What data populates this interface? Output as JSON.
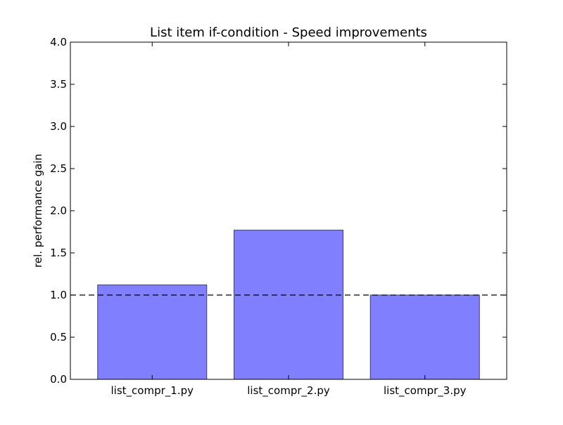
{
  "chart_data": {
    "type": "bar",
    "title": "List item if-condition - Speed improvements",
    "xlabel": "",
    "ylabel": "rel. performance gain",
    "categories": [
      "list_compr_1.py",
      "list_compr_2.py",
      "list_compr_3.py"
    ],
    "values": [
      1.12,
      1.77,
      1.0
    ],
    "ylim": [
      0,
      4.0
    ],
    "yticks": [
      "0.0",
      "0.5",
      "1.0",
      "1.5",
      "2.0",
      "2.5",
      "3.0",
      "3.5",
      "4.0"
    ],
    "reference_line": 1.0,
    "grid": false,
    "colors": {
      "bar_fill": "#8080ff",
      "bar_edge": "#3c3c7a",
      "reference_line": "#000000"
    }
  }
}
